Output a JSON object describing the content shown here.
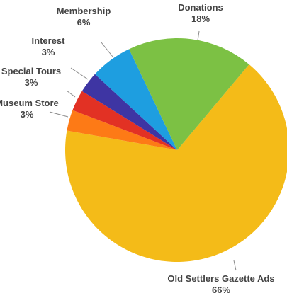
{
  "chart_data": {
    "type": "pie",
    "slices": [
      {
        "label": "Old Settlers Gazette Ads",
        "value": 66,
        "display": "66%",
        "color": "#f4bb18"
      },
      {
        "label": "Museum Store",
        "value": 3,
        "display": "3%",
        "color": "#fd7a16"
      },
      {
        "label": "Special Tours",
        "value": 3,
        "display": "3%",
        "color": "#e23124"
      },
      {
        "label": "Interest",
        "value": 3,
        "display": "3%",
        "color": "#3e35a3"
      },
      {
        "label": "Membership",
        "value": 6,
        "display": "6%",
        "color": "#1e9ee0"
      },
      {
        "label": "Donations",
        "value": 18,
        "display": "18%",
        "color": "#7cc144"
      }
    ],
    "start_angle_deg": 40,
    "direction": "clockwise",
    "legend": "none",
    "labels": "outside with leader lines"
  }
}
